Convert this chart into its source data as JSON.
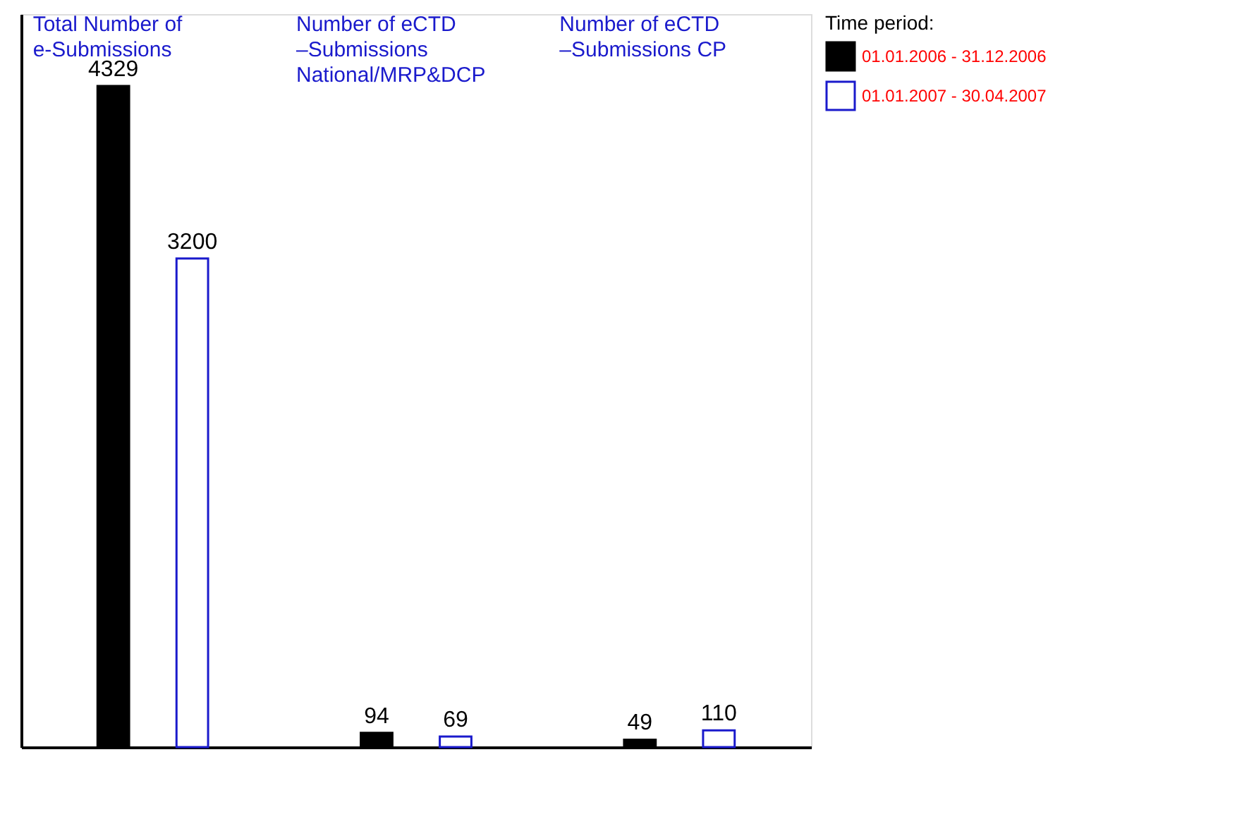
{
  "chart_data": {
    "type": "bar",
    "categories": [
      "Total Number of e-Submissions",
      "Number of eCTD –Submissions National/MRP&DCP",
      "Number of eCTD –Submissions CP"
    ],
    "series": [
      {
        "name": "01.01.2006 - 31.12.2006",
        "color": "#000000",
        "values": [
          4329,
          94,
          49
        ]
      },
      {
        "name": "01.01.2007 - 30.04.2007",
        "color": "#1a1acc",
        "values": [
          3200,
          69,
          110
        ]
      }
    ],
    "legend_title": "Time period:",
    "legend": "right",
    "ylim": [
      0,
      4800
    ],
    "data_labels": true,
    "tick_labels": false
  }
}
